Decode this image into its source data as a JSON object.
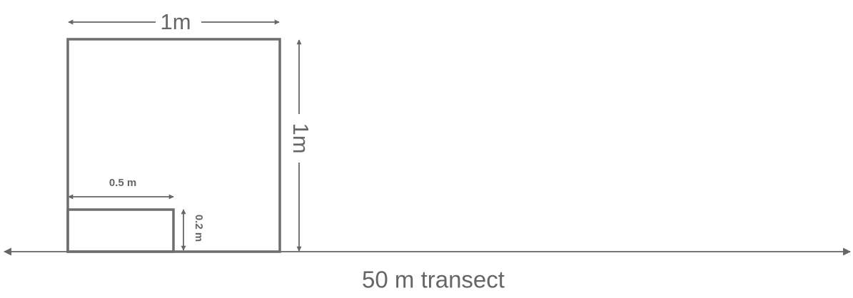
{
  "labels": {
    "quadrat_width": "1m",
    "quadrat_height": "1m",
    "subplot_width": "0.5 m",
    "subplot_height": "0.2 m",
    "transect": "50 m transect"
  },
  "colors": {
    "line": "#666666",
    "frame": "#6e6e6e",
    "text": "#666666",
    "background": "#ffffff"
  }
}
